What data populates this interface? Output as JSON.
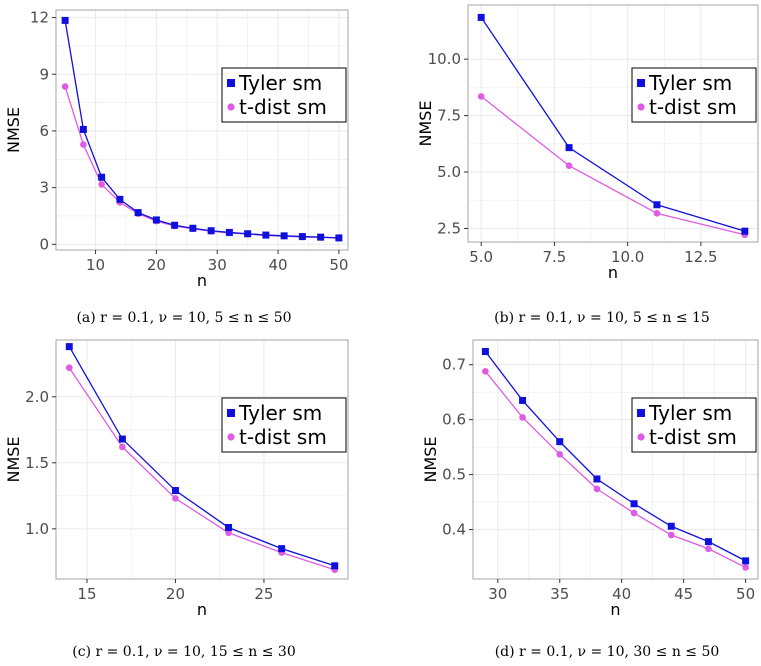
{
  "colors": {
    "tyler": "#1010dd",
    "tdist": "#de5be3",
    "panel_border": "#a6a6a6",
    "grid": "#ebebeb"
  },
  "chart_data": [
    {
      "type": "line",
      "caption": "(a) r = 0.1, ν = 10, 5 ≤ n ≤ 50",
      "xlabel": "n",
      "ylabel": "NMSE",
      "xlim": [
        3.5,
        51.5
      ],
      "ylim": [
        -0.3,
        12.4
      ],
      "xticks": [
        10,
        20,
        30,
        40,
        50
      ],
      "xtick_labels": [
        "10",
        "20",
        "30",
        "40",
        "50"
      ],
      "yticks": [
        0,
        3,
        6,
        9,
        12
      ],
      "ytick_labels": [
        "0",
        "3",
        "6",
        "9",
        "12"
      ],
      "legend_position": "top-right",
      "x": [
        5,
        8,
        11,
        14,
        17,
        20,
        23,
        26,
        29,
        32,
        35,
        38,
        41,
        44,
        47,
        50
      ],
      "series": [
        {
          "name": "Tyler sm",
          "marker": "square",
          "values": [
            11.85,
            6.08,
            3.55,
            2.38,
            1.68,
            1.29,
            1.01,
            0.85,
            0.72,
            0.63,
            0.56,
            0.49,
            0.45,
            0.41,
            0.38,
            0.34
          ]
        },
        {
          "name": "t-dist sm",
          "marker": "circle",
          "values": [
            8.35,
            5.28,
            3.17,
            2.22,
            1.62,
            1.23,
            0.97,
            0.82,
            0.69,
            0.6,
            0.54,
            0.47,
            0.43,
            0.39,
            0.37,
            0.33
          ]
        }
      ]
    },
    {
      "type": "line",
      "caption": "(b) r = 0.1,  ν = 10, 5 ≤ n ≤ 15",
      "xlabel": "n",
      "ylabel": "NMSE",
      "xlim": [
        4.55,
        14.45
      ],
      "ylim": [
        1.9,
        12.4
      ],
      "xticks": [
        5,
        7.5,
        10,
        12.5
      ],
      "xtick_labels": [
        "5.0",
        "7.5",
        "10.0",
        "12.5"
      ],
      "yticks": [
        2.5,
        5,
        7.5,
        10
      ],
      "ytick_labels": [
        "2.5",
        "5.0",
        "7.5",
        "10.0"
      ],
      "legend_position": "top-right",
      "x": [
        5,
        8,
        11,
        14
      ],
      "series": [
        {
          "name": "Tyler sm",
          "marker": "square",
          "values": [
            11.85,
            6.08,
            3.55,
            2.38
          ]
        },
        {
          "name": "t-dist sm",
          "marker": "circle",
          "values": [
            8.35,
            5.28,
            3.17,
            2.22
          ]
        }
      ]
    },
    {
      "type": "line",
      "caption": "(c) r = 0.1, ν = 10, 15 ≤ n ≤ 30",
      "xlabel": "n",
      "ylabel": "NMSE",
      "xlim": [
        13.25,
        29.75
      ],
      "ylim": [
        0.62,
        2.43
      ],
      "xticks": [
        15,
        20,
        25
      ],
      "xtick_labels": [
        "15",
        "20",
        "25"
      ],
      "yticks": [
        1.0,
        1.5,
        2.0
      ],
      "ytick_labels": [
        "1.0",
        "1.5",
        "2.0"
      ],
      "legend_position": "top-right",
      "x": [
        14,
        17,
        20,
        23,
        26,
        29
      ],
      "series": [
        {
          "name": "Tyler sm",
          "marker": "square",
          "values": [
            2.38,
            1.68,
            1.29,
            1.01,
            0.85,
            0.72
          ]
        },
        {
          "name": "t-dist sm",
          "marker": "circle",
          "values": [
            2.22,
            1.62,
            1.23,
            0.97,
            0.82,
            0.69
          ]
        }
      ]
    },
    {
      "type": "line",
      "caption": "(d) r = 0.1, ν = 10, 30 ≤ n ≤ 50",
      "xlabel": "n",
      "ylabel": "NMSE",
      "xlim": [
        28.0,
        51.0
      ],
      "ylim": [
        0.31,
        0.745
      ],
      "xticks": [
        30,
        35,
        40,
        45,
        50
      ],
      "xtick_labels": [
        "30",
        "35",
        "40",
        "45",
        "50"
      ],
      "yticks": [
        0.4,
        0.5,
        0.6,
        0.7
      ],
      "ytick_labels": [
        "0.4",
        "0.5",
        "0.6",
        "0.7"
      ],
      "legend_position": "top-right",
      "x": [
        29,
        32,
        35,
        38,
        41,
        44,
        47,
        50
      ],
      "series": [
        {
          "name": "Tyler sm",
          "marker": "square",
          "values": [
            0.724,
            0.635,
            0.56,
            0.492,
            0.447,
            0.406,
            0.378,
            0.343
          ]
        },
        {
          "name": "t-dist sm",
          "marker": "circle",
          "values": [
            0.688,
            0.604,
            0.537,
            0.474,
            0.43,
            0.39,
            0.365,
            0.331
          ]
        }
      ]
    }
  ]
}
